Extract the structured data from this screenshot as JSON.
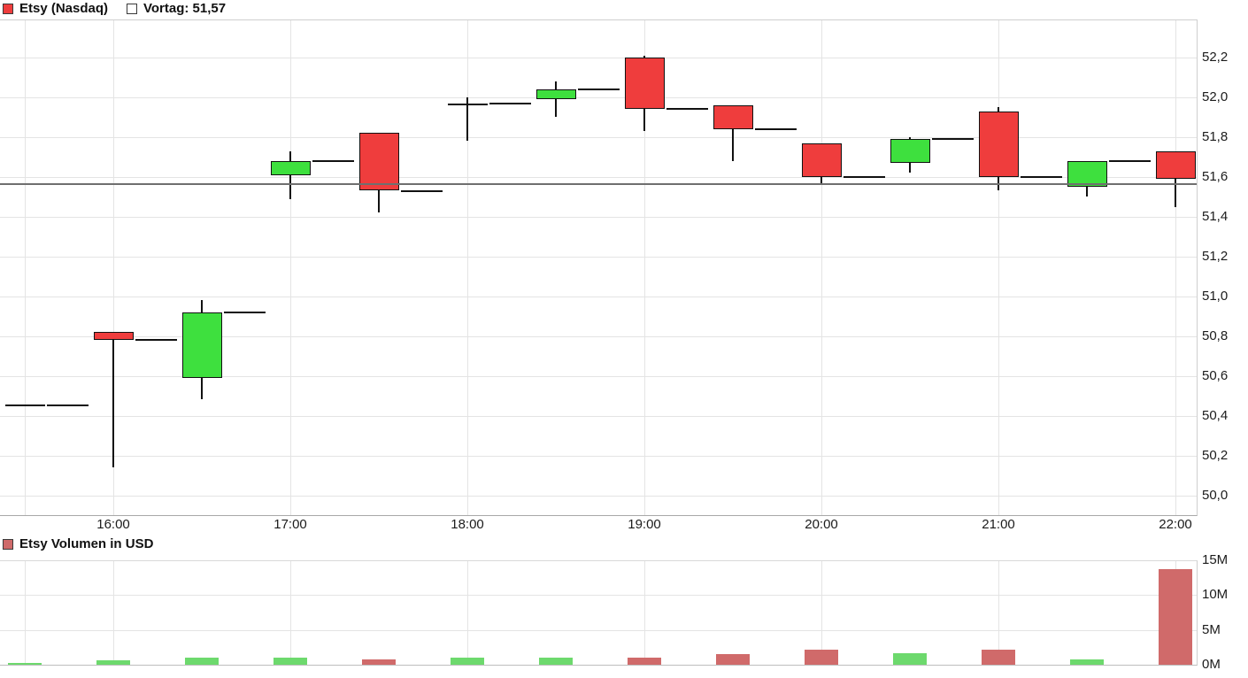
{
  "header": {
    "series": {
      "label": "Etsy (Nasdaq)",
      "swatch_color": "#ef3d3d"
    },
    "reference": {
      "label": "Vortag: 51,57",
      "value": 51.57
    }
  },
  "volume_header": {
    "label": "Etsy Volumen in USD",
    "swatch_color": "#cf6a6a"
  },
  "chart_data": [
    {
      "type": "candlestick",
      "title": "Etsy (Nasdaq)",
      "x": [
        "15:30",
        "16:00",
        "16:30",
        "17:00",
        "17:30",
        "18:00",
        "18:30",
        "19:00",
        "19:30",
        "20:00",
        "20:30",
        "21:00",
        "21:30",
        "22:00"
      ],
      "ohlc": [
        [
          50.45,
          50.45,
          50.45,
          50.45
        ],
        [
          50.82,
          50.82,
          50.14,
          50.78
        ],
        [
          50.59,
          50.98,
          50.48,
          50.92
        ],
        [
          51.61,
          51.73,
          51.49,
          51.68
        ],
        [
          51.82,
          51.82,
          51.42,
          51.53
        ],
        [
          51.96,
          52.0,
          51.78,
          51.97
        ],
        [
          51.99,
          52.08,
          51.9,
          52.04
        ],
        [
          52.2,
          52.21,
          51.83,
          51.94
        ],
        [
          51.96,
          51.96,
          51.68,
          51.84
        ],
        [
          51.77,
          51.77,
          51.57,
          51.6
        ],
        [
          51.67,
          51.8,
          51.62,
          51.79
        ],
        [
          51.93,
          51.95,
          51.53,
          51.6
        ],
        [
          51.55,
          51.68,
          51.5,
          51.68
        ],
        [
          51.73,
          51.73,
          51.45,
          51.59
        ]
      ],
      "prev_close": {
        "value": 51.57,
        "label": "Vortag: 51,57"
      },
      "ylim": [
        49.9,
        52.4
      ],
      "yticks": {
        "values": [
          52.2,
          52.0,
          51.8,
          51.6,
          51.4,
          51.2,
          51.0,
          50.8,
          50.6,
          50.4,
          50.2,
          50.0
        ],
        "labels": [
          "52,2",
          "52,0",
          "51,8",
          "51,6",
          "51,4",
          "51,2",
          "51,0",
          "50,8",
          "50,6",
          "50,4",
          "50,2",
          "50,0"
        ]
      },
      "xticks": [
        "16:00",
        "17:00",
        "18:00",
        "19:00",
        "20:00",
        "21:00",
        "22:00"
      ],
      "grid": true,
      "legend_position": "top-left",
      "colors": {
        "up": "#3ee03e",
        "down": "#ef3d3d",
        "outline": "#111111",
        "prev_close_line": "#6f6f6f"
      }
    },
    {
      "type": "bar",
      "title": "Etsy Volumen in USD",
      "categories": [
        "15:30",
        "16:00",
        "16:30",
        "17:00",
        "17:30",
        "18:00",
        "18:30",
        "19:00",
        "19:30",
        "20:00",
        "20:30",
        "21:00",
        "21:30",
        "22:00"
      ],
      "values_million_usd": [
        0.2,
        0.6,
        1.0,
        1.0,
        0.8,
        1.0,
        1.0,
        1.0,
        1.5,
        2.1,
        1.6,
        2.1,
        0.8,
        13.7
      ],
      "directions": [
        "up",
        "up",
        "up",
        "up",
        "down",
        "up",
        "up",
        "down",
        "down",
        "down",
        "up",
        "down",
        "up",
        "down"
      ],
      "ylim": [
        0,
        15
      ],
      "yticks": {
        "values": [
          0,
          5,
          10,
          15
        ],
        "labels": [
          "0M",
          "5M",
          "10M",
          "15M"
        ]
      },
      "grid": true,
      "colors": {
        "up": "#6dd96d",
        "down": "#d06a6a"
      }
    }
  ]
}
